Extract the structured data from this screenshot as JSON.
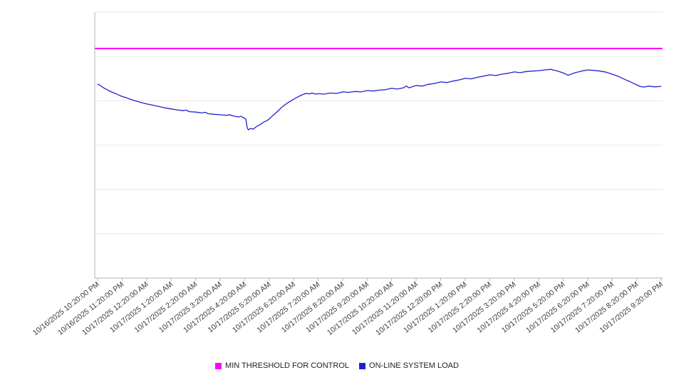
{
  "chart_data": {
    "type": "line",
    "title": "",
    "xlabel": "",
    "ylabel": "",
    "ylim": [
      0,
      120
    ],
    "grid": true,
    "gridline_values": [
      0,
      20,
      40,
      60,
      80,
      100,
      120
    ],
    "y_tick_labels_visible": false,
    "legend_position": "bottom-center",
    "x_range_hours": [
      0,
      23
    ],
    "x_tick_labels": [
      "10/16/2025 10:20:00 PM",
      "10/16/2025 11:20:00 PM",
      "10/17/2025 12:20:00 AM",
      "10/17/2025 1:20:00 AM",
      "10/17/2025 2:20:00 AM",
      "10/17/2025 3:20:00 AM",
      "10/17/2025 4:20:00 AM",
      "10/17/2025 5:20:00 AM",
      "10/17/2025 6:20:00 AM",
      "10/17/2025 7:20:00 AM",
      "10/17/2025 8:20:00 AM",
      "10/17/2025 9:20:00 AM",
      "10/17/2025 10:20:00 AM",
      "10/17/2025 11:20:00 AM",
      "10/17/2025 12:20:00 PM",
      "10/17/2025 1:20:00 PM",
      "10/17/2025 2:20:00 PM",
      "10/17/2025 3:20:00 PM",
      "10/17/2025 4:20:00 PM",
      "10/17/2025 5:20:00 PM",
      "10/17/2025 6:20:00 PM",
      "10/17/2025 7:20:00 PM",
      "10/17/2025 8:20:00 PM",
      "10/17/2025 9:20:00 PM"
    ],
    "series": [
      {
        "name": "MIN THRESHOLD FOR CONTROL",
        "type": "threshold",
        "color": "#ff00ff",
        "value": 103.6
      },
      {
        "name": "ON-LINE SYSTEM LOAD",
        "type": "line",
        "color": "#2222cc",
        "points": [
          [
            0,
            87.5
          ],
          [
            0.1,
            87.0
          ],
          [
            0.25,
            85.8
          ],
          [
            0.4,
            84.9
          ],
          [
            0.5,
            84.3
          ],
          [
            0.65,
            83.6
          ],
          [
            0.75,
            83.2
          ],
          [
            0.9,
            82.4
          ],
          [
            1,
            81.9
          ],
          [
            1.15,
            81.5
          ],
          [
            1.25,
            81.0
          ],
          [
            1.5,
            80.1
          ],
          [
            1.75,
            79.3
          ],
          [
            2,
            78.6
          ],
          [
            2.25,
            78.0
          ],
          [
            2.5,
            77.4
          ],
          [
            2.75,
            76.8
          ],
          [
            3,
            76.3
          ],
          [
            3.25,
            75.9
          ],
          [
            3.5,
            75.5
          ],
          [
            3.6,
            75.8
          ],
          [
            3.75,
            75.1
          ],
          [
            4,
            74.9
          ],
          [
            4.25,
            74.5
          ],
          [
            4.4,
            74.8
          ],
          [
            4.5,
            74.2
          ],
          [
            4.75,
            73.9
          ],
          [
            5,
            73.7
          ],
          [
            5.25,
            73.4
          ],
          [
            5.4,
            73.7
          ],
          [
            5.5,
            73.2
          ],
          [
            5.75,
            72.7
          ],
          [
            5.85,
            73.0
          ],
          [
            6,
            72.1
          ],
          [
            6.05,
            71.7
          ],
          [
            6.1,
            68.0
          ],
          [
            6.15,
            66.9
          ],
          [
            6.25,
            67.5
          ],
          [
            6.35,
            67.2
          ],
          [
            6.5,
            68.5
          ],
          [
            6.65,
            69.3
          ],
          [
            6.75,
            70.2
          ],
          [
            6.9,
            71.0
          ],
          [
            7,
            71.7
          ],
          [
            7.1,
            72.8
          ],
          [
            7.25,
            74.3
          ],
          [
            7.4,
            75.8
          ],
          [
            7.5,
            76.9
          ],
          [
            7.65,
            78.2
          ],
          [
            7.75,
            79.0
          ],
          [
            7.9,
            80.0
          ],
          [
            8,
            80.7
          ],
          [
            8.15,
            81.6
          ],
          [
            8.25,
            82.2
          ],
          [
            8.4,
            82.9
          ],
          [
            8.5,
            83.3
          ],
          [
            8.65,
            83.1
          ],
          [
            8.75,
            83.5
          ],
          [
            8.9,
            83.0
          ],
          [
            9,
            83.2
          ],
          [
            9.25,
            83.0
          ],
          [
            9.5,
            83.5
          ],
          [
            9.75,
            83.3
          ],
          [
            10,
            84.0
          ],
          [
            10.25,
            83.8
          ],
          [
            10.5,
            84.2
          ],
          [
            10.75,
            84.0
          ],
          [
            11,
            84.6
          ],
          [
            11.25,
            84.4
          ],
          [
            11.5,
            84.8
          ],
          [
            11.75,
            85.0
          ],
          [
            12,
            85.6
          ],
          [
            12.25,
            85.3
          ],
          [
            12.5,
            85.9
          ],
          [
            12.6,
            86.7
          ],
          [
            12.7,
            85.8
          ],
          [
            13,
            86.9
          ],
          [
            13.25,
            86.6
          ],
          [
            13.5,
            87.4
          ],
          [
            13.75,
            87.8
          ],
          [
            14,
            88.5
          ],
          [
            14.25,
            88.2
          ],
          [
            14.5,
            88.9
          ],
          [
            14.75,
            89.4
          ],
          [
            15,
            90.1
          ],
          [
            15.25,
            89.9
          ],
          [
            15.5,
            90.6
          ],
          [
            15.75,
            91.1
          ],
          [
            16,
            91.7
          ],
          [
            16.25,
            91.4
          ],
          [
            16.5,
            92.0
          ],
          [
            16.75,
            92.4
          ],
          [
            17,
            93.0
          ],
          [
            17.25,
            92.7
          ],
          [
            17.5,
            93.2
          ],
          [
            17.75,
            93.4
          ],
          [
            18,
            93.6
          ],
          [
            18.25,
            93.9
          ],
          [
            18.5,
            94.2
          ],
          [
            18.6,
            93.8
          ],
          [
            18.75,
            93.5
          ],
          [
            19,
            92.6
          ],
          [
            19.2,
            91.5
          ],
          [
            19.4,
            92.3
          ],
          [
            19.5,
            92.7
          ],
          [
            19.75,
            93.4
          ],
          [
            20,
            93.9
          ],
          [
            20.25,
            93.7
          ],
          [
            20.5,
            93.4
          ],
          [
            20.75,
            92.9
          ],
          [
            21,
            92.0
          ],
          [
            21.25,
            91.0
          ],
          [
            21.5,
            89.7
          ],
          [
            21.75,
            88.5
          ],
          [
            22,
            87.2
          ],
          [
            22.15,
            86.4
          ],
          [
            22.3,
            86.2
          ],
          [
            22.5,
            86.6
          ],
          [
            22.75,
            86.3
          ],
          [
            23,
            86.5
          ]
        ]
      }
    ]
  }
}
